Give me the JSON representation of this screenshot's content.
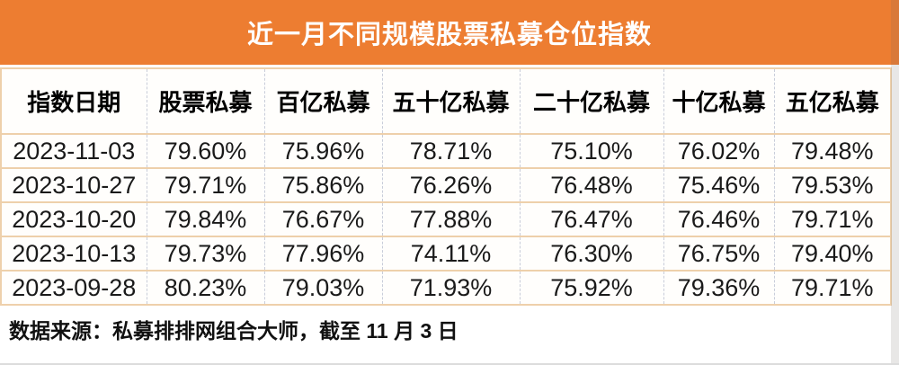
{
  "title_bar": {
    "title": "近一月不同规模股票私募仓位指数"
  },
  "chart_data": {
    "type": "table",
    "title": "近一月不同规模股票私募仓位指数",
    "columns": [
      "指数日期",
      "股票私募",
      "百亿私募",
      "五十亿私募",
      "二十亿私募",
      "十亿私募",
      "五亿私募"
    ],
    "rows": [
      [
        "2023-11-03",
        "79.60%",
        "75.96%",
        "78.71%",
        "75.10%",
        "76.02%",
        "79.48%"
      ],
      [
        "2023-10-27",
        "79.71%",
        "75.86%",
        "76.26%",
        "76.48%",
        "75.46%",
        "79.53%"
      ],
      [
        "2023-10-20",
        "79.84%",
        "76.67%",
        "77.88%",
        "76.47%",
        "76.46%",
        "79.71%"
      ],
      [
        "2023-10-13",
        "79.73%",
        "77.96%",
        "74.11%",
        "76.30%",
        "76.75%",
        "79.40%"
      ],
      [
        "2023-09-28",
        "80.23%",
        "79.03%",
        "71.93%",
        "75.92%",
        "79.36%",
        "79.71%"
      ]
    ],
    "footnote": "数据来源：私募排排网组合大师，截至 11 月 3 日"
  },
  "footer": {
    "source_note": "数据来源：私募排排网组合大师，截至 11 月 3 日"
  },
  "colors": {
    "header_bg": "#ED7D31",
    "title_text": "#FFFFFF",
    "row_border": "#EED0AB",
    "column_divider": "#C9CDD9",
    "body_text": "#1A1A1A"
  }
}
